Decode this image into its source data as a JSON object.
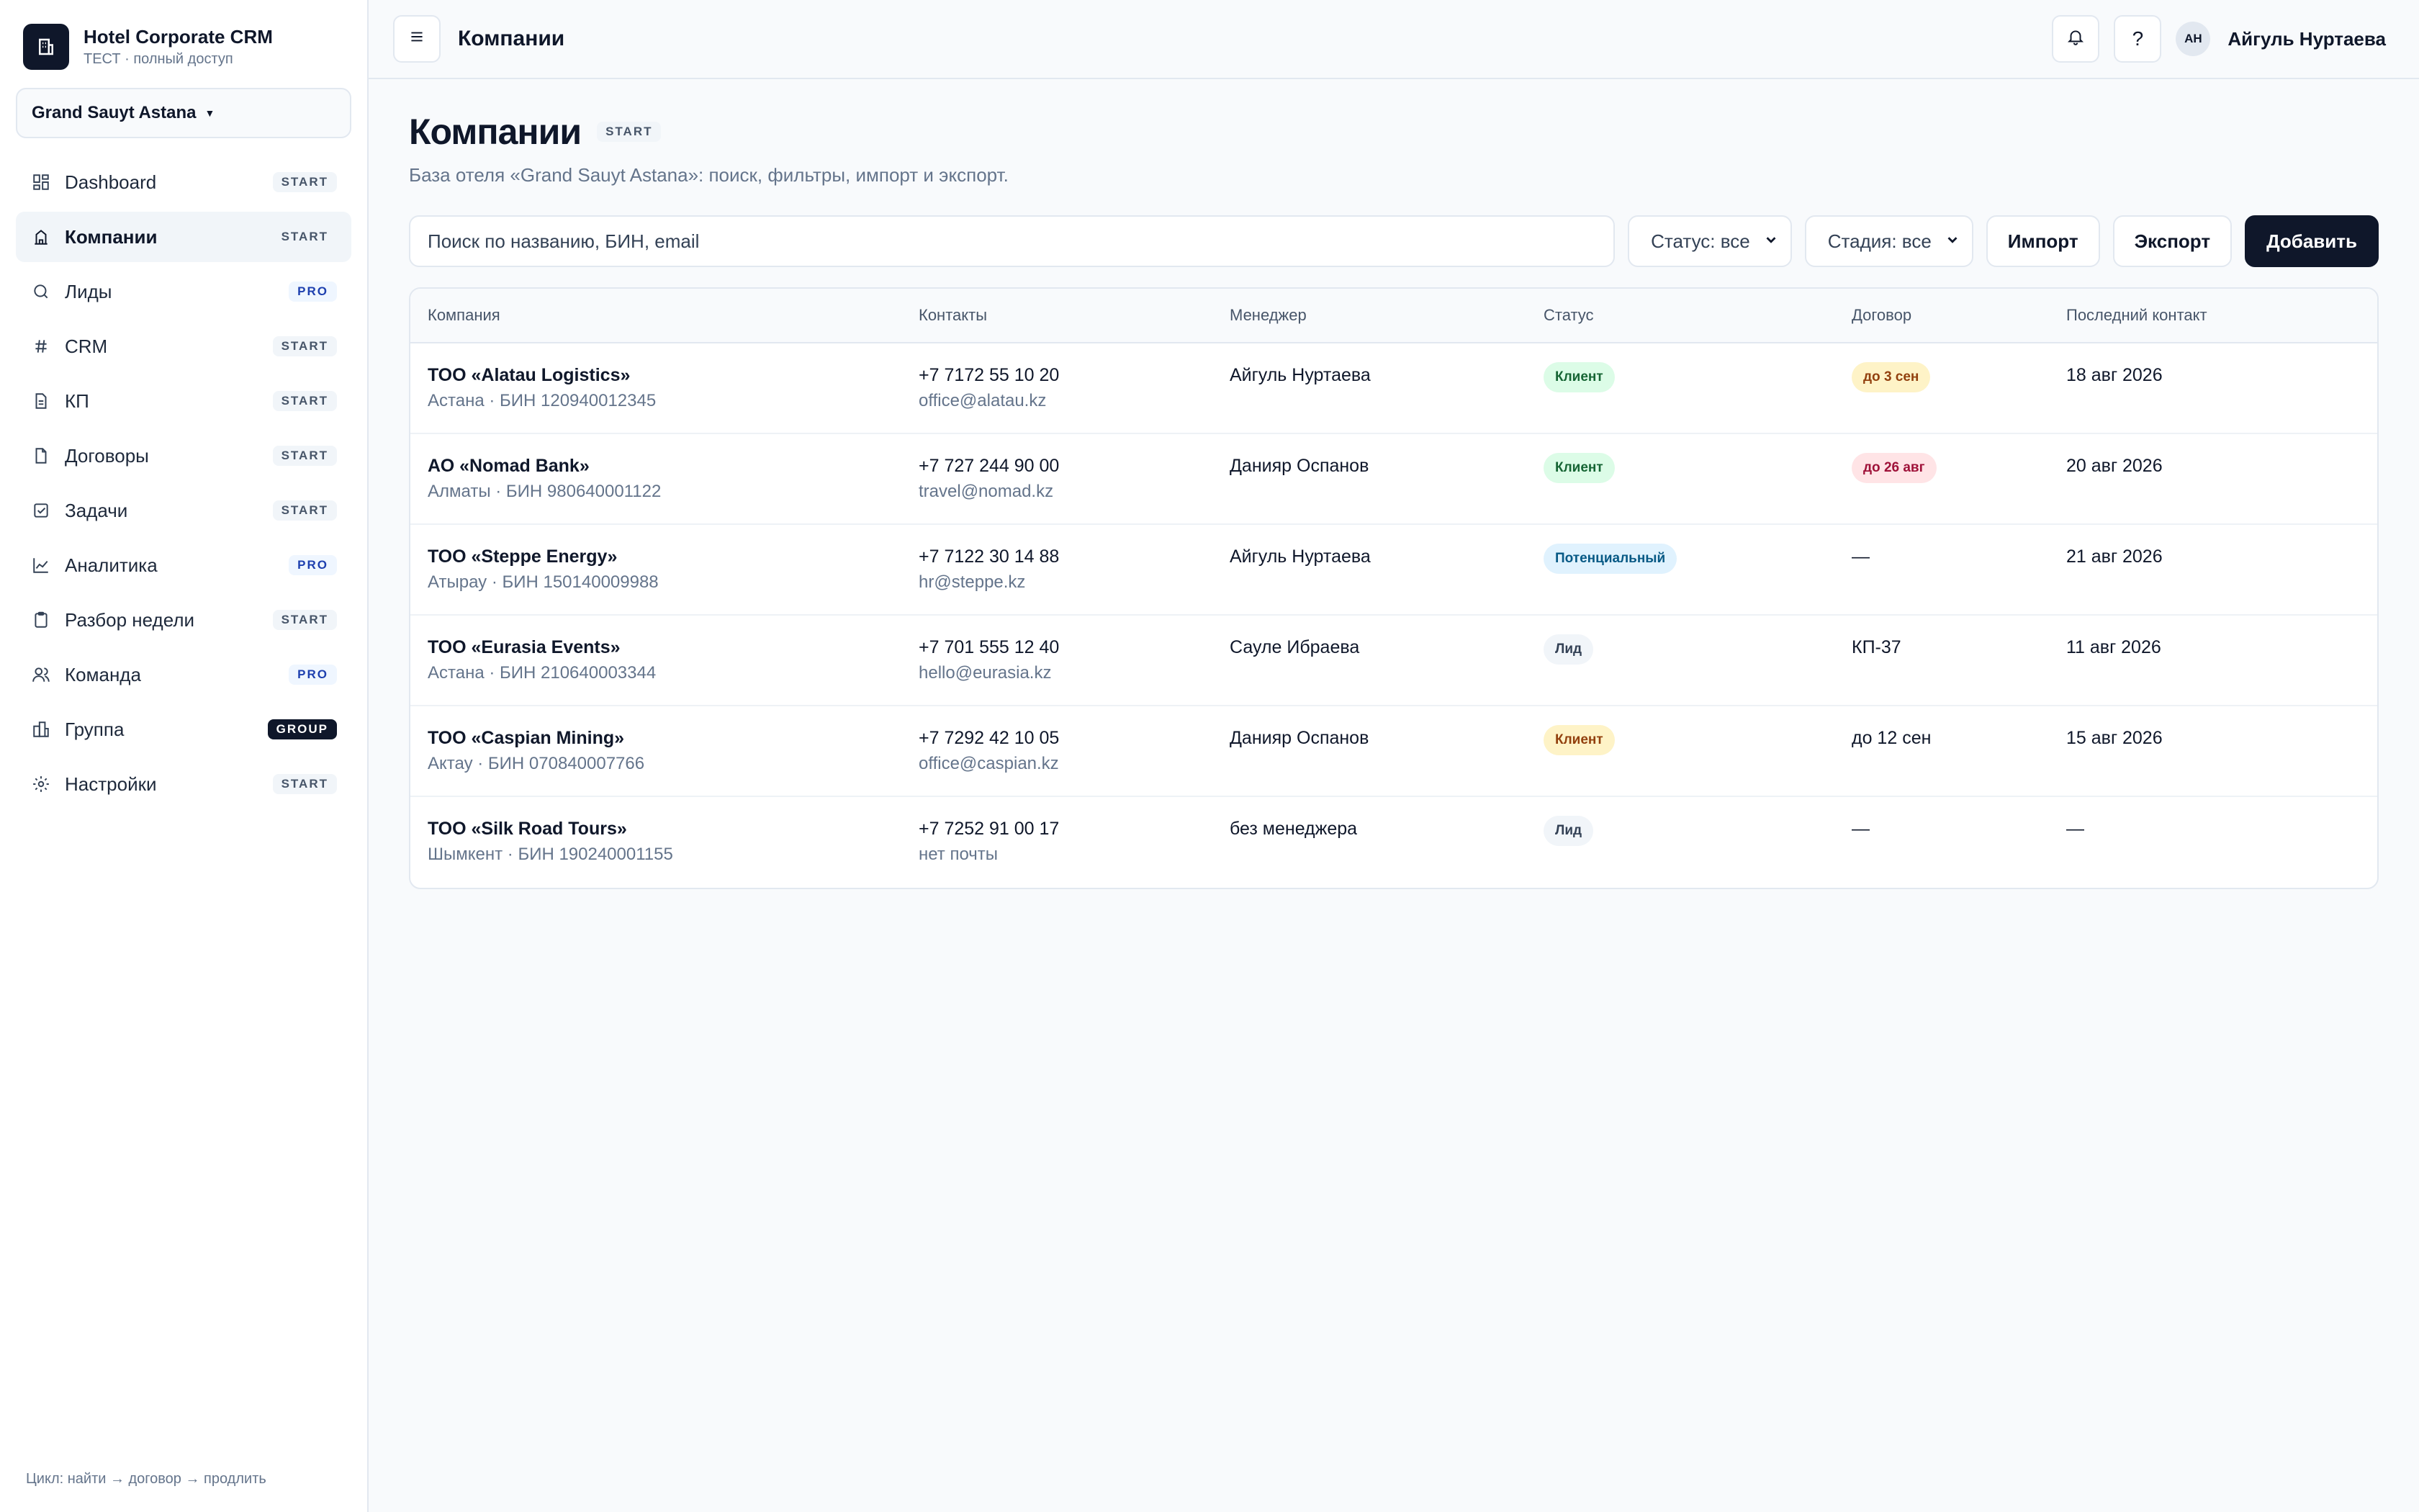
{
  "brand": {
    "title": "Hotel Corporate CRM",
    "subtitle": "ТЕСТ · полный доступ"
  },
  "hotel_selector": {
    "value": "Grand Sauyt Astana"
  },
  "nav": [
    {
      "label": "Dashboard",
      "badge": "START",
      "icon": "grid-icon"
    },
    {
      "label": "Компании",
      "badge": "START",
      "icon": "building-icon",
      "active": true
    },
    {
      "label": "Лиды",
      "badge": "PRO",
      "icon": "search-icon"
    },
    {
      "label": "CRM",
      "badge": "START",
      "icon": "hash-icon"
    },
    {
      "label": "КП",
      "badge": "START",
      "icon": "document-icon"
    },
    {
      "label": "Договоры",
      "badge": "START",
      "icon": "file-icon"
    },
    {
      "label": "Задачи",
      "badge": "START",
      "icon": "checkbox-icon"
    },
    {
      "label": "Аналитика",
      "badge": "PRO",
      "icon": "chart-line-icon"
    },
    {
      "label": "Разбор недели",
      "badge": "START",
      "icon": "clipboard-icon"
    },
    {
      "label": "Команда",
      "badge": "PRO",
      "icon": "users-icon"
    },
    {
      "label": "Группа",
      "badge": "GROUP",
      "icon": "buildings-icon"
    },
    {
      "label": "Настройки",
      "badge": "START",
      "icon": "gear-icon"
    }
  ],
  "sidebar_footer": "Цикл: найти → договор → продлить",
  "topbar": {
    "title": "Компании",
    "user_initials": "АН",
    "user_name": "Айгуль Нуртаева",
    "help": "?"
  },
  "page": {
    "title": "Компании",
    "badge": "START",
    "subtitle": "База отеля «Grand Sauyt Astana»: поиск, фильтры, импорт и экспорт."
  },
  "toolbar": {
    "search_placeholder": "Поиск по названию, БИН, email",
    "status_filter": "Статус: все",
    "stage_filter": "Стадия: все",
    "import_label": "Импорт",
    "export_label": "Экспорт",
    "add_label": "Добавить"
  },
  "table": {
    "columns": [
      "Компания",
      "Контакты",
      "Менеджер",
      "Статус",
      "Договор",
      "Последний контакт"
    ],
    "rows": [
      {
        "name": "ТОО «Alatau Logistics»",
        "meta": "Астана · БИН 120940012345",
        "phone": "+7 7172 55 10 20",
        "email": "office@alatau.kz",
        "manager": "Айгуль Нуртаева",
        "status": "Клиент",
        "status_type": "client",
        "contract": "до 3 сен",
        "contract_type": "amber",
        "last_contact": "18 авг 2026"
      },
      {
        "name": "АО «Nomad Bank»",
        "meta": "Алматы · БИН 980640001122",
        "phone": "+7 727 244 90 00",
        "email": "travel@nomad.kz",
        "manager": "Данияр Оспанов",
        "status": "Клиент",
        "status_type": "client",
        "contract": "до 26 авг",
        "contract_type": "red",
        "last_contact": "20 авг 2026"
      },
      {
        "name": "ТОО «Steppe Energy»",
        "meta": "Атырау · БИН 150140009988",
        "phone": "+7 7122 30 14 88",
        "email": "hr@steppe.kz",
        "manager": "Айгуль Нуртаева",
        "status": "Потенциальный",
        "status_type": "potential",
        "contract": "—",
        "contract_type": "text",
        "last_contact": "21 авг 2026"
      },
      {
        "name": "ТОО «Eurasia Events»",
        "meta": "Астана · БИН 210640003344",
        "phone": "+7 701 555 12 40",
        "email": "hello@eurasia.kz",
        "manager": "Сауле Ибраева",
        "status": "Лид",
        "status_type": "lead",
        "contract": "КП-37",
        "contract_type": "text",
        "last_contact": "11 авг 2026"
      },
      {
        "name": "ТОО «Caspian Mining»",
        "meta": "Актау · БИН 070840007766",
        "phone": "+7 7292 42 10 05",
        "email": "office@caspian.kz",
        "manager": "Данияр Оспанов",
        "status": "Клиент",
        "status_type": "client-warn",
        "contract": "до 12 сен",
        "contract_type": "text",
        "last_contact": "15 авг 2026"
      },
      {
        "name": "ТОО «Silk Road Tours»",
        "meta": "Шымкент · БИН 190240001155",
        "phone": "+7 7252 91 00 17",
        "email": "нет почты",
        "manager": "без менеджера",
        "status": "Лид",
        "status_type": "lead",
        "contract": "—",
        "contract_type": "text",
        "last_contact": "—"
      }
    ]
  }
}
